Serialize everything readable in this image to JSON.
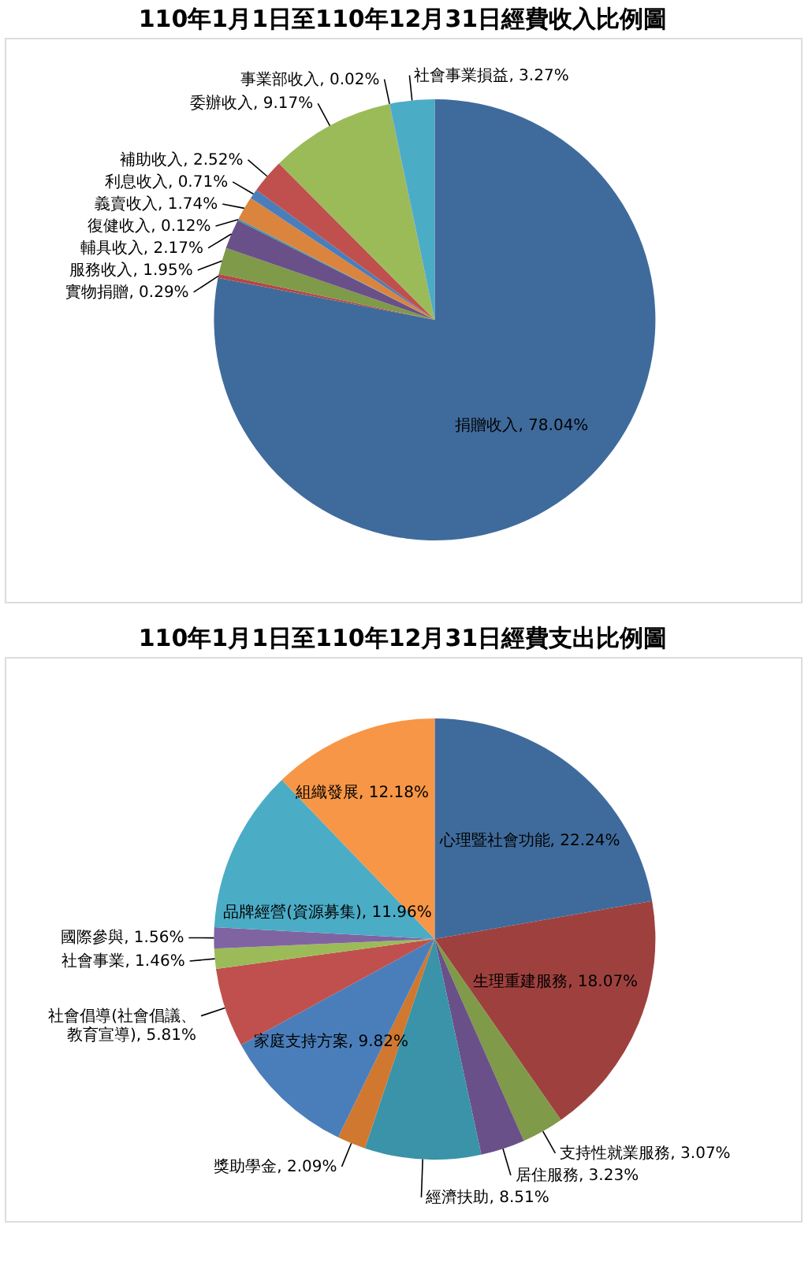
{
  "chart_data": [
    {
      "type": "pie",
      "title": "110年1月1日至110年12月31日經費收入比例圖",
      "categories": [
        "捐贈收入",
        "實物捐贈",
        "服務收入",
        "輔具收入",
        "復健收入",
        "義賣收入",
        "利息收入",
        "補助收入",
        "委辦收入",
        "事業部收入",
        "社會事業損益"
      ],
      "values": [
        78.04,
        0.29,
        1.95,
        2.17,
        0.12,
        1.74,
        0.71,
        2.52,
        9.17,
        0.02,
        3.27
      ],
      "value_labels": [
        "78.04%",
        "0.29%",
        "1.95%",
        "2.17%",
        "0.12%",
        "1.74%",
        "0.71%",
        "2.52%",
        "9.17%",
        "0.02%",
        "3.27%"
      ],
      "colors": [
        "#3f6b9c",
        "#b54845",
        "#7f9a48",
        "#6a5089",
        "#3c95ab",
        "#db843d",
        "#4a7ebb",
        "#c0504d",
        "#9bbb59",
        "#8064a2",
        "#4bacc6"
      ]
    },
    {
      "type": "pie",
      "title": "110年1月1日至110年12月31日經費支出比例圖",
      "categories": [
        "心理暨社會功能",
        "生理重建服務",
        "支持性就業服務",
        "居住服務",
        "經濟扶助",
        "獎助學金",
        "家庭支持方案",
        "社會倡導(社會倡議、教育宣導)",
        "社會事業",
        "國際參與",
        "品牌經營(資源募集)",
        "組織發展"
      ],
      "values": [
        22.24,
        18.07,
        3.07,
        3.23,
        8.51,
        2.09,
        9.82,
        5.81,
        1.46,
        1.56,
        11.96,
        12.18
      ],
      "value_labels": [
        "22.24%",
        "18.07%",
        "3.07%",
        "3.23%",
        "8.51%",
        "2.09%",
        "9.82%",
        "5.81%",
        "1.46%",
        "1.56%",
        "11.96%",
        "12.18%"
      ],
      "colors": [
        "#3f6b9c",
        "#9e413e",
        "#7f9a48",
        "#6a5089",
        "#3a93a8",
        "#d0782f",
        "#4a7ebb",
        "#c0504d",
        "#9bbb59",
        "#8064a2",
        "#4bacc6",
        "#f79646"
      ]
    }
  ]
}
